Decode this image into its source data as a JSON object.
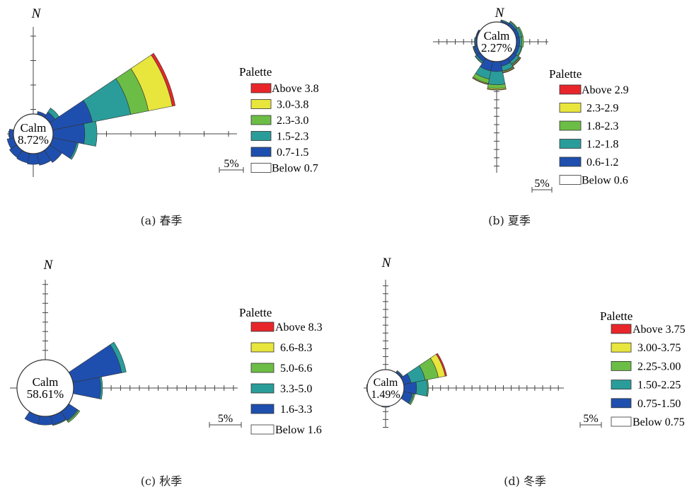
{
  "palette_colors": [
    "#1f4fae",
    "#2a9d9a",
    "#6cbd45",
    "#e8e53d",
    "#e8262a"
  ],
  "chart_data": [
    {
      "type": "windrose",
      "caption": "(a) 春季",
      "north_label": "N",
      "calm_label": "Calm",
      "calm_value": "8.72%",
      "scale_label": "5%",
      "palette_title": "Palette",
      "legend": [
        "Above 3.8",
        "3.0-3.8",
        "2.3-3.0",
        "1.5-2.3",
        "0.7-1.5",
        "Below 0.7"
      ],
      "unit_percent": 5,
      "sectors": [
        {
          "dir": 67.5,
          "cum": [
            8.3,
            16.3,
            20.0,
            25.0,
            25.6
          ]
        },
        {
          "dir": 90,
          "cum": [
            6.5,
            9.0
          ]
        },
        {
          "dir": 112.5,
          "cum": [
            5.0,
            5.4
          ]
        },
        {
          "dir": 135,
          "cum": [
            3.0
          ]
        },
        {
          "dir": 157.5,
          "cum": [
            2.5
          ]
        },
        {
          "dir": 180,
          "cum": [
            2.2
          ]
        },
        {
          "dir": 202.5,
          "cum": [
            2.0
          ]
        },
        {
          "dir": 225,
          "cum": [
            1.8
          ]
        },
        {
          "dir": 247.5,
          "cum": [
            1.4
          ]
        },
        {
          "dir": 270,
          "cum": [
            0.9
          ]
        },
        {
          "dir": 45,
          "cum": [
            1.3,
            2.3
          ]
        },
        {
          "dir": 22.5,
          "cum": [
            0.6
          ]
        }
      ]
    },
    {
      "type": "windrose",
      "caption": "(b) 夏季",
      "north_label": "N",
      "calm_label": "Calm",
      "calm_value": "2.27%",
      "scale_label": "5%",
      "palette_title": "Palette",
      "legend": [
        "Above 2.9",
        "2.3-2.9",
        "1.8-2.3",
        "1.2-1.8",
        "0.6-1.2",
        "Below 0.6"
      ],
      "unit_percent": 5,
      "sectors": [
        {
          "dir": 180,
          "cum": [
            6.0,
            14.0,
            16.3,
            17.0,
            17.2
          ]
        },
        {
          "dir": 202.5,
          "cum": [
            6.0,
            11.0,
            13.6,
            14.1,
            14.4
          ]
        },
        {
          "dir": 157.5,
          "cum": [
            3.0,
            6.0,
            6.5,
            7.0,
            7.3
          ]
        },
        {
          "dir": 135,
          "cum": [
            2.5,
            4.3,
            4.8,
            5.3,
            5.6
          ]
        },
        {
          "dir": 112.5,
          "cum": [
            2.0,
            3.4,
            3.8
          ]
        },
        {
          "dir": 90,
          "cum": [
            2.0,
            3.2,
            4.3
          ]
        },
        {
          "dir": 67.5,
          "cum": [
            2.0,
            3.5,
            4.3
          ]
        },
        {
          "dir": 45,
          "cum": [
            1.7,
            2.6,
            3.1
          ]
        },
        {
          "dir": 22.5,
          "cum": [
            1.0,
            1.5
          ]
        },
        {
          "dir": 247.5,
          "cum": [
            2.0,
            2.5,
            2.7
          ]
        },
        {
          "dir": 225,
          "cum": [
            2.5,
            3.5,
            3.8
          ]
        },
        {
          "dir": 270,
          "cum": [
            1.0,
            1.5
          ]
        },
        {
          "dir": 292.5,
          "cum": [
            0.8,
            1.0
          ]
        }
      ]
    },
    {
      "type": "windrose",
      "caption": "(c) 秋季",
      "north_label": "N",
      "calm_label": "Calm",
      "calm_value": "58.61%",
      "scale_label": "5%",
      "palette_title": "Palette",
      "legend": [
        "Above 8.3",
        "6.6-8.3",
        "5.0-6.6",
        "3.3-5.0",
        "1.6-3.3",
        "Below 1.6"
      ],
      "unit_percent": 5,
      "sectors": [
        {
          "dir": 67.5,
          "cum": [
            26.4,
            28.8
          ]
        },
        {
          "dir": 90,
          "cum": [
            14.4,
            15.4
          ]
        },
        {
          "dir": 135,
          "cum": [
            5.6,
            6.2,
            7.0
          ]
        },
        {
          "dir": 157.5,
          "cum": [
            4.8,
            5.2
          ]
        },
        {
          "dir": 180,
          "cum": [
            4.6
          ]
        },
        {
          "dir": 202.5,
          "cum": [
            4.5
          ]
        }
      ]
    },
    {
      "type": "windrose",
      "caption": "(d) 冬季",
      "north_label": "N",
      "calm_label": "Calm",
      "calm_value": "1.49%",
      "scale_label": "5%",
      "palette_title": "Palette",
      "legend": [
        "Above 3.75",
        "3.00-3.75",
        "2.25-3.00",
        "1.50-2.25",
        "0.75-1.50",
        "Below 0.75"
      ],
      "unit_percent": 5,
      "sectors": [
        {
          "dir": 67.5,
          "cum": [
            4.8,
            14.0,
            22.6,
            27.0,
            28.0
          ]
        },
        {
          "dir": 90,
          "cum": [
            8.0,
            15.0,
            15.6
          ]
        },
        {
          "dir": 112.5,
          "cum": [
            5.7,
            6.6,
            7.4
          ]
        },
        {
          "dir": 45,
          "cum": [
            1.1,
            1.6
          ]
        },
        {
          "dir": 180,
          "cum": [
            0.5
          ]
        },
        {
          "dir": 270,
          "cum": [
            0.4
          ]
        }
      ]
    }
  ]
}
